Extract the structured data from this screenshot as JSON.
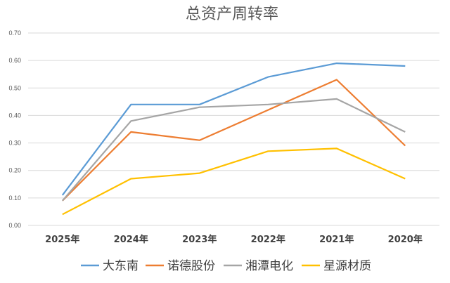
{
  "chart_data": {
    "type": "line",
    "title": "总资产周转率",
    "categories": [
      "2025年",
      "2024年",
      "2023年",
      "2022年",
      "2021年",
      "2020年"
    ],
    "ylim": [
      0,
      0.7
    ],
    "yticks": [
      "0.00",
      "0.10",
      "0.20",
      "0.30",
      "0.40",
      "0.50",
      "0.60",
      "0.70"
    ],
    "grid": true,
    "legend_position": "bottom",
    "series": [
      {
        "name": "大东南",
        "color": "#5B9BD5",
        "values": [
          0.11,
          0.44,
          0.44,
          0.54,
          0.59,
          0.58
        ]
      },
      {
        "name": "诺德股份",
        "color": "#ED7D31",
        "values": [
          0.09,
          0.34,
          0.31,
          0.42,
          0.53,
          0.29
        ]
      },
      {
        "name": "湘潭电化",
        "color": "#A5A5A5",
        "values": [
          0.09,
          0.38,
          0.43,
          0.44,
          0.46,
          0.34
        ]
      },
      {
        "name": "星源材质",
        "color": "#FFC000",
        "values": [
          0.04,
          0.17,
          0.19,
          0.27,
          0.28,
          0.17
        ]
      }
    ]
  }
}
